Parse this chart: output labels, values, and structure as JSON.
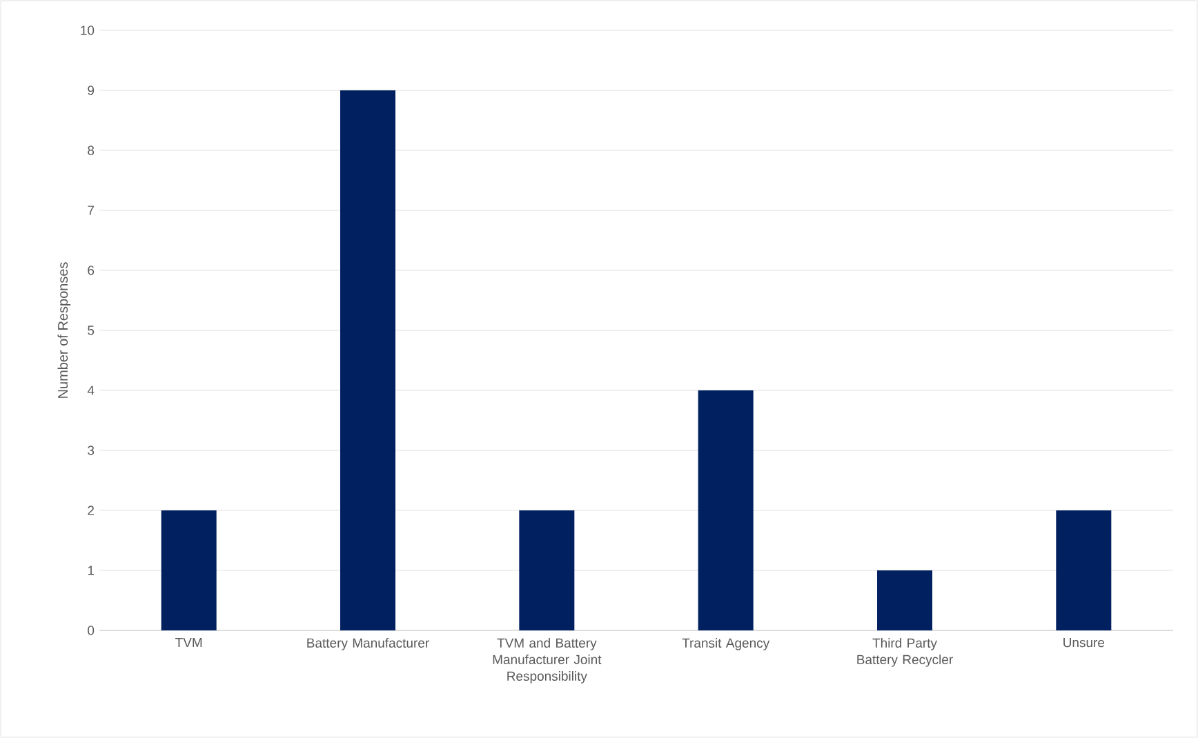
{
  "chart_data": {
    "type": "bar",
    "ylabel": "Number of Responses",
    "categories": [
      "TVM",
      "Battery Manufacturer",
      "TVM and Battery Manufacturer Joint Responsibility",
      "Transit Agency",
      "Third Party Battery Recycler",
      "Unsure"
    ],
    "values": [
      2,
      9,
      2,
      4,
      1,
      2
    ],
    "color": "#002060",
    "ylim": [
      0,
      10
    ],
    "yticks": [
      0,
      1,
      2,
      3,
      4,
      5,
      6,
      7,
      8,
      9,
      10
    ],
    "grid": "y"
  }
}
